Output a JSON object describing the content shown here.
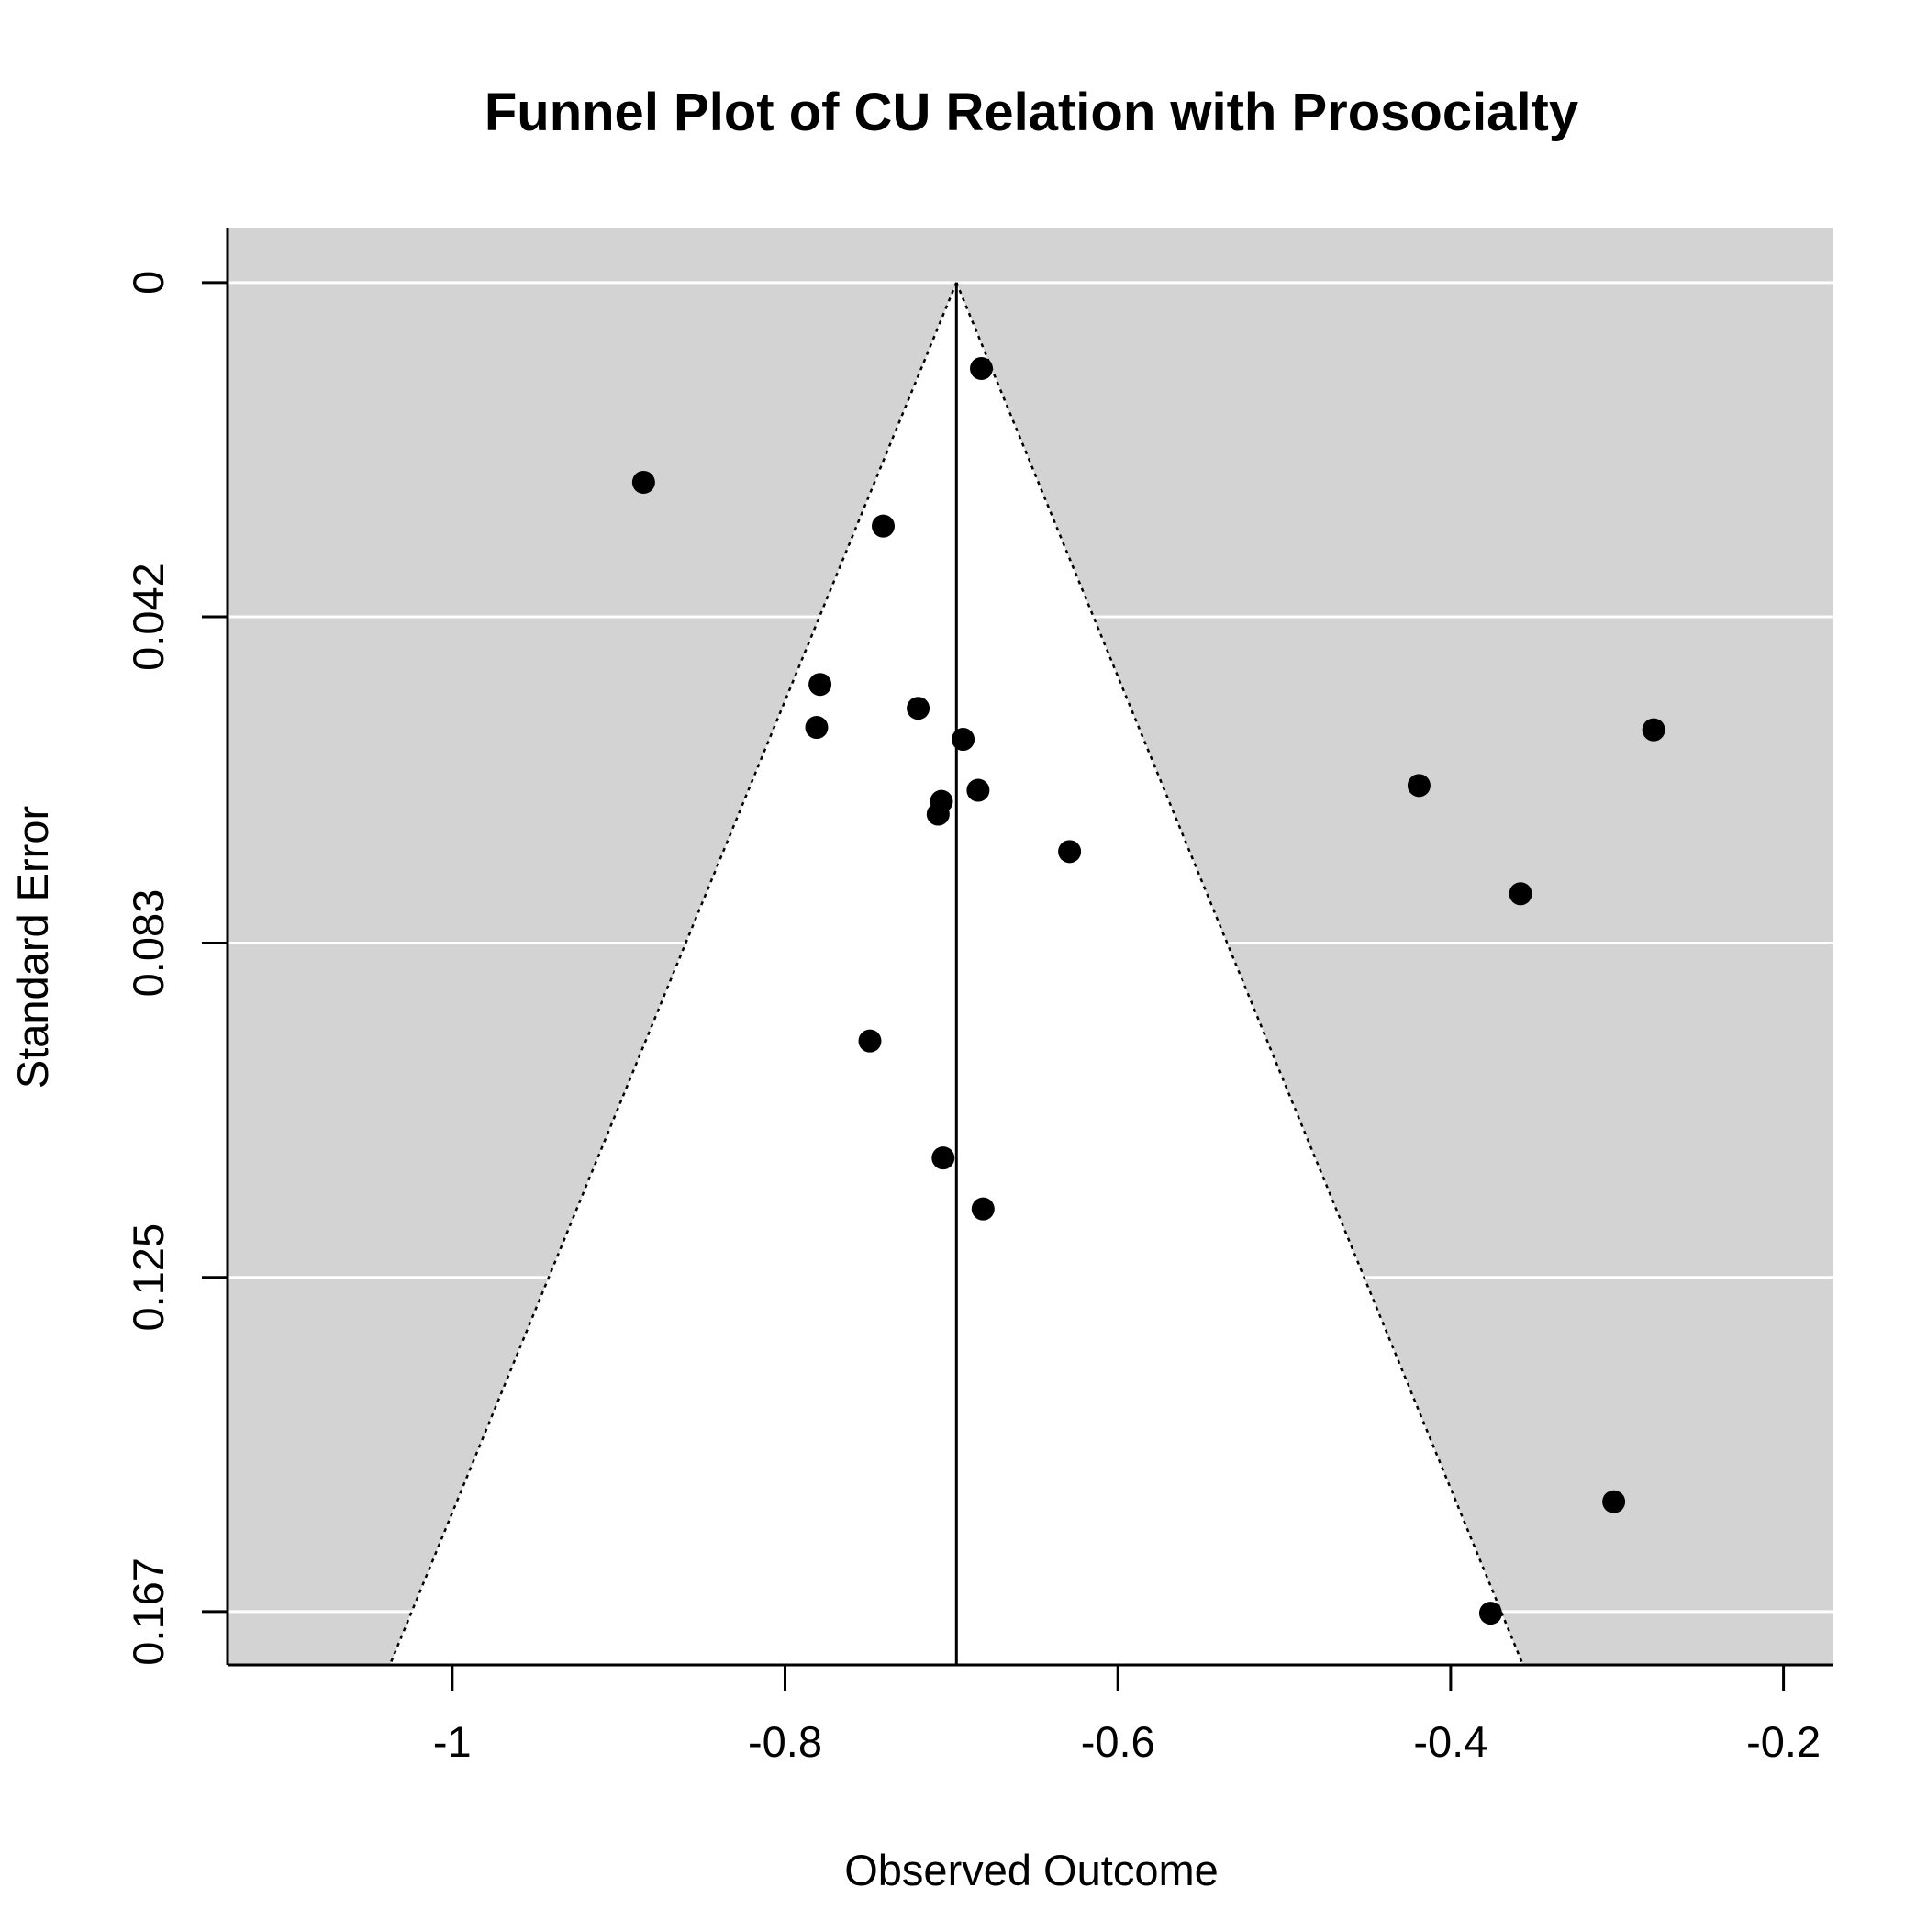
{
  "chart_data": {
    "type": "scatter",
    "title": "Funnel Plot of CU Relation with Prosocialty",
    "xlabel": "Observed Outcome",
    "ylabel": "Standard Error",
    "xlim": [
      -1.135,
      -0.17
    ],
    "ylim": [
      0.1737,
      -0.0069
    ],
    "y_reversed": true,
    "x_ticks": [
      -1,
      -0.8,
      -0.6,
      -0.4,
      -0.2
    ],
    "x_tick_labels": [
      "-1",
      "-0.8",
      "-0.6",
      "-0.4",
      "-0.2"
    ],
    "y_ticks": [
      0,
      0.042,
      0.083,
      0.125,
      0.167
    ],
    "y_tick_labels": [
      "0",
      "0.042",
      "0.083",
      "0.125",
      "0.167"
    ],
    "pooled_estimate": -0.697,
    "z_crit": 1.96,
    "grid": true,
    "colors": {
      "background": "#d3d3d3",
      "funnel": "#ffffff",
      "gridlines": "#ffffff",
      "points": "#000000",
      "lines": "#000000"
    },
    "points": [
      {
        "x": -0.682,
        "y": 0.0108
      },
      {
        "x": -0.885,
        "y": 0.0251
      },
      {
        "x": -0.741,
        "y": 0.0306
      },
      {
        "x": -0.779,
        "y": 0.0505
      },
      {
        "x": -0.72,
        "y": 0.0535
      },
      {
        "x": -0.781,
        "y": 0.0559
      },
      {
        "x": -0.693,
        "y": 0.0574
      },
      {
        "x": -0.684,
        "y": 0.0638
      },
      {
        "x": -0.706,
        "y": 0.0652
      },
      {
        "x": -0.708,
        "y": 0.0668
      },
      {
        "x": -0.419,
        "y": 0.0632
      },
      {
        "x": -0.278,
        "y": 0.0562
      },
      {
        "x": -0.629,
        "y": 0.0715
      },
      {
        "x": -0.358,
        "y": 0.0768
      },
      {
        "x": -0.749,
        "y": 0.0953
      },
      {
        "x": -0.705,
        "y": 0.11
      },
      {
        "x": -0.681,
        "y": 0.1164
      },
      {
        "x": -0.302,
        "y": 0.1532
      },
      {
        "x": -0.376,
        "y": 0.1672
      }
    ]
  }
}
